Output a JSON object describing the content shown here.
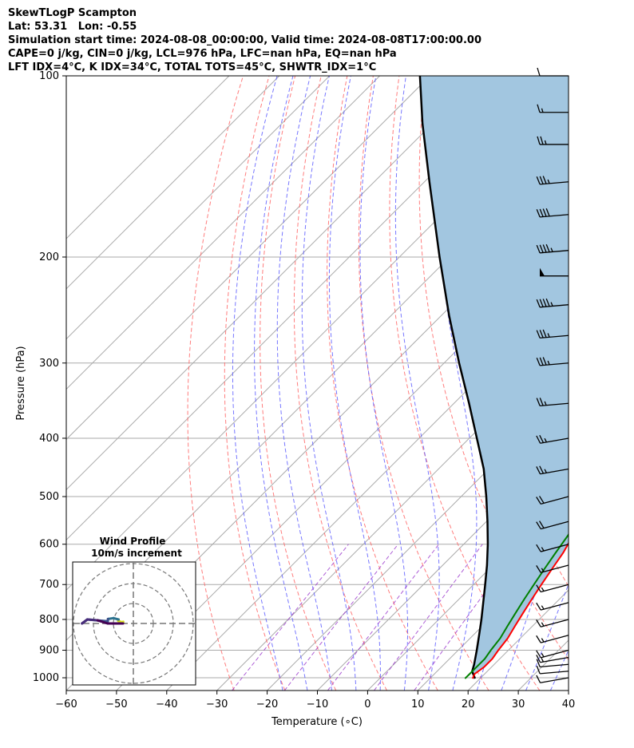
{
  "header": {
    "line1": "SkewTLogP Scampton",
    "line2": "Lat: 53.31   Lon: -0.55",
    "line3": "Simulation start time: 2024-08-08_00:00:00, Valid time: 2024-08-08T17:00:00.00",
    "line4": "CAPE=0 j/kg, CIN=0 j/kg, LCL=976 hPa, LFC=nan hPa, EQ=nan hPa",
    "line5": "LFT IDX=4°C, K IDX=34°C, TOTAL TOTS=45°C, SHWTR_IDX=1°C"
  },
  "colors": {
    "temperature": "#ff0000",
    "dewpoint": "#008000",
    "parcel": "#000000",
    "shade": "#a2c6e0",
    "isotherm": "#aaaaaa",
    "dry_adiabat": "#ff6666",
    "moist_adiabat": "#5555ff",
    "mixing_ratio": "#9933cc"
  },
  "chart_data": {
    "type": "line",
    "skew": "skew-T log-P",
    "xlabel": "Temperature (∘C)",
    "ylabel": "Pressure (hPa)",
    "xlim": [
      -60,
      40
    ],
    "ylim": [
      1050,
      100
    ],
    "yscale": "log",
    "xticks": [
      -60,
      -50,
      -40,
      -30,
      -20,
      -10,
      0,
      10,
      20,
      30,
      40
    ],
    "xtick_labels": [
      "−60",
      "−50",
      "−40",
      "−30",
      "−20",
      "−10",
      "0",
      "10",
      "20",
      "30",
      "40"
    ],
    "yticks": [
      100,
      200,
      300,
      400,
      500,
      600,
      700,
      800,
      900,
      1000
    ],
    "ytick_labels": [
      "100",
      "200",
      "300",
      "400",
      "500",
      "600",
      "700",
      "800",
      "900",
      "1000"
    ],
    "grid": true,
    "series": [
      {
        "key": "temperature",
        "p": [
          1003,
          985,
          960,
          930,
          900,
          860,
          820,
          780,
          740,
          700,
          660,
          620,
          580,
          540,
          500,
          460,
          420,
          380,
          340,
          300,
          270,
          240,
          215,
          195,
          185,
          175,
          165,
          150,
          140,
          130,
          120,
          110,
          100
        ],
        "t": [
          18.5,
          18,
          18.5,
          18.5,
          18,
          17.5,
          16.5,
          15.5,
          14.5,
          13.5,
          12.5,
          11.5,
          10,
          8.5,
          7,
          5.5,
          3.5,
          1.5,
          -1.5,
          -4.5,
          -6.5,
          -8,
          -9,
          -9.5,
          -8.5,
          -7,
          -4,
          0,
          2.5,
          4.5,
          5.5,
          6,
          5.5
        ]
      },
      {
        "key": "dewpoint",
        "p": [
          1003,
          985,
          960,
          930,
          900,
          860,
          820,
          780,
          740,
          700,
          660,
          620,
          580,
          540,
          500,
          470,
          440,
          410,
          380,
          350,
          320,
          300,
          270,
          240,
          210,
          190,
          175,
          168,
          160,
          155,
          140,
          120,
          100
        ],
        "t": [
          17,
          17,
          17,
          17,
          16.5,
          16,
          15,
          14,
          13,
          12,
          11,
          10,
          9,
          7.5,
          6,
          4.5,
          0.5,
          -6,
          -6,
          -6.5,
          -9.5,
          -11.5,
          -13,
          -14.5,
          -16,
          -17,
          -17.5,
          -22.5,
          -27,
          -32,
          -29,
          -25.5,
          -21
        ]
      },
      {
        "key": "parcel",
        "p": [
          1003,
          976,
          950,
          900,
          850,
          800,
          750,
          700,
          650,
          600,
          550,
          500,
          450,
          400,
          350,
          300,
          250,
          200,
          150,
          120,
          100
        ],
        "t": [
          19,
          17,
          16,
          13.7,
          11.2,
          8.5,
          5.5,
          2.3,
          -1.2,
          -5.2,
          -9.8,
          -15,
          -21,
          -28.5,
          -37,
          -47,
          -58.5,
          -72,
          -89,
          -102,
          -112
        ]
      }
    ],
    "wind_barbs": {
      "p": [
        1000,
        975,
        950,
        925,
        900,
        850,
        800,
        750,
        700,
        650,
        600,
        550,
        500,
        450,
        400,
        350,
        300,
        270,
        240,
        215,
        195,
        170,
        150,
        130,
        115,
        100
      ],
      "speed_kt": [
        10,
        10,
        10,
        15,
        15,
        15,
        15,
        15,
        15,
        15,
        15,
        20,
        20,
        25,
        25,
        25,
        35,
        35,
        45,
        50,
        45,
        40,
        35,
        25,
        15,
        10
      ],
      "dir_deg": [
        260,
        265,
        265,
        260,
        255,
        255,
        255,
        255,
        255,
        255,
        255,
        255,
        255,
        260,
        260,
        265,
        265,
        265,
        265,
        270,
        265,
        265,
        265,
        270,
        270,
        270
      ]
    },
    "inset": {
      "title_line1": "Wind Profile",
      "title_line2": "10m/s increment",
      "type": "hodograph"
    }
  }
}
